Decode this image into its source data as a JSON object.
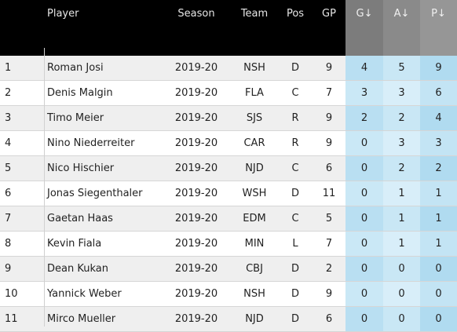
{
  "columns": {
    "rank": "",
    "player": "Player",
    "season": "Season",
    "team": "Team",
    "pos": "Pos",
    "gp": "GP",
    "g": "G↓",
    "a": "A↓",
    "p": "P↓"
  },
  "rows": [
    {
      "rank": "1",
      "player": "Roman Josi",
      "season": "2019-20",
      "team": "NSH",
      "pos": "D",
      "gp": "9",
      "g": "4",
      "a": "5",
      "p": "9"
    },
    {
      "rank": "2",
      "player": "Denis Malgin",
      "season": "2019-20",
      "team": "FLA",
      "pos": "C",
      "gp": "7",
      "g": "3",
      "a": "3",
      "p": "6"
    },
    {
      "rank": "3",
      "player": "Timo Meier",
      "season": "2019-20",
      "team": "SJS",
      "pos": "R",
      "gp": "9",
      "g": "2",
      "a": "2",
      "p": "4"
    },
    {
      "rank": "4",
      "player": "Nino Niederreiter",
      "season": "2019-20",
      "team": "CAR",
      "pos": "R",
      "gp": "9",
      "g": "0",
      "a": "3",
      "p": "3"
    },
    {
      "rank": "5",
      "player": "Nico Hischier",
      "season": "2019-20",
      "team": "NJD",
      "pos": "C",
      "gp": "6",
      "g": "0",
      "a": "2",
      "p": "2"
    },
    {
      "rank": "6",
      "player": "Jonas Siegenthaler",
      "season": "2019-20",
      "team": "WSH",
      "pos": "D",
      "gp": "11",
      "g": "0",
      "a": "1",
      "p": "1"
    },
    {
      "rank": "7",
      "player": "Gaetan Haas",
      "season": "2019-20",
      "team": "EDM",
      "pos": "C",
      "gp": "5",
      "g": "0",
      "a": "1",
      "p": "1"
    },
    {
      "rank": "8",
      "player": "Kevin Fiala",
      "season": "2019-20",
      "team": "MIN",
      "pos": "L",
      "gp": "7",
      "g": "0",
      "a": "1",
      "p": "1"
    },
    {
      "rank": "9",
      "player": "Dean Kukan",
      "season": "2019-20",
      "team": "CBJ",
      "pos": "D",
      "gp": "2",
      "g": "0",
      "a": "0",
      "p": "0"
    },
    {
      "rank": "10",
      "player": "Yannick Weber",
      "season": "2019-20",
      "team": "NSH",
      "pos": "D",
      "gp": "9",
      "g": "0",
      "a": "0",
      "p": "0"
    },
    {
      "rank": "11",
      "player": "Mirco Mueller",
      "season": "2019-20",
      "team": "NJD",
      "pos": "D",
      "gp": "6",
      "g": "0",
      "a": "0",
      "p": "0"
    }
  ]
}
